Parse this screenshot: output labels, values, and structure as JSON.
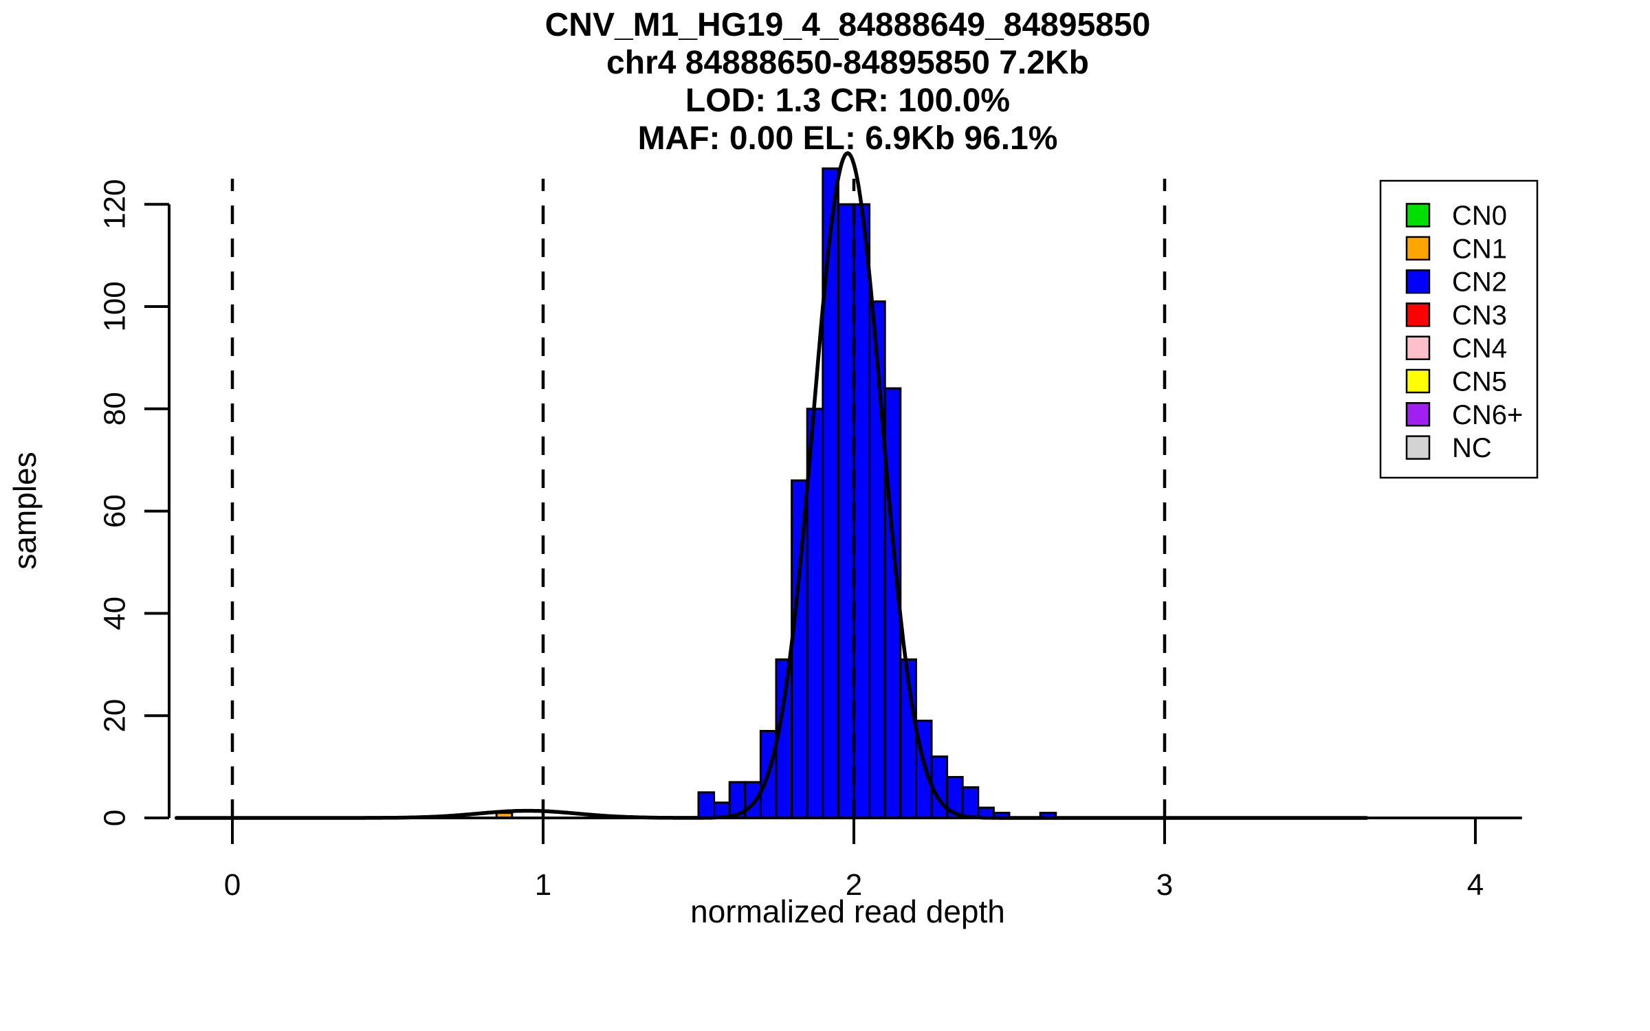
{
  "chart_data": {
    "type": "bar",
    "title": "CNV_M1_HG19_4_84888649_84895850",
    "title_lines": [
      "CNV_M1_HG19_4_84888649_84895850",
      "chr4 84888650-84895850 7.2Kb",
      "LOD: 1.3 CR: 100.0%",
      "MAF: 0.00 EL: 6.9Kb 96.1%"
    ],
    "xlabel": "normalized read depth",
    "ylabel": "samples",
    "x_ticks": [
      0,
      1,
      2,
      3,
      4
    ],
    "y_ticks": [
      0,
      20,
      40,
      60,
      80,
      100,
      120
    ],
    "xlim": [
      -0.18,
      4.15
    ],
    "ylim": [
      0,
      125
    ],
    "grid": false,
    "legend_position": "top-right",
    "bin_width": 0.05,
    "series": [
      {
        "name": "CN2",
        "color": "#0000FF",
        "bins": [
          [
            1.5,
            5
          ],
          [
            1.55,
            3
          ],
          [
            1.6,
            7
          ],
          [
            1.65,
            7
          ],
          [
            1.7,
            17
          ],
          [
            1.75,
            31
          ],
          [
            1.8,
            66
          ],
          [
            1.85,
            80
          ],
          [
            1.9,
            127
          ],
          [
            1.95,
            120
          ],
          [
            2.0,
            120
          ],
          [
            2.05,
            101
          ],
          [
            2.1,
            84
          ],
          [
            2.15,
            31
          ],
          [
            2.2,
            19
          ],
          [
            2.25,
            12
          ],
          [
            2.3,
            8
          ],
          [
            2.35,
            6
          ],
          [
            2.4,
            2
          ],
          [
            2.45,
            1
          ],
          [
            2.6,
            1
          ]
        ]
      },
      {
        "name": "CN1",
        "color": "#FFA500",
        "bins": [
          [
            0.85,
            1
          ]
        ]
      }
    ],
    "vertical_dashed_lines_x": [
      0,
      1,
      2,
      3
    ],
    "fit_curve": {
      "type": "gaussian",
      "mean": 1.98,
      "sd": 0.11,
      "peak": 130,
      "x_start": -0.18,
      "x_end": 3.65,
      "minor_bump": {
        "mean": 0.95,
        "sd": 0.16,
        "peak": 1.4
      }
    },
    "legend": {
      "items": [
        {
          "label": "CN0",
          "color": "#00DF00"
        },
        {
          "label": "CN1",
          "color": "#FFA500"
        },
        {
          "label": "CN2",
          "color": "#0000FF"
        },
        {
          "label": "CN3",
          "color": "#FF0000"
        },
        {
          "label": "CN4",
          "color": "#FFC0CB"
        },
        {
          "label": "CN5",
          "color": "#FFFF00"
        },
        {
          "label": "CN6+",
          "color": "#A020F0"
        },
        {
          "label": "NC",
          "color": "#D3D3D3"
        }
      ]
    }
  }
}
